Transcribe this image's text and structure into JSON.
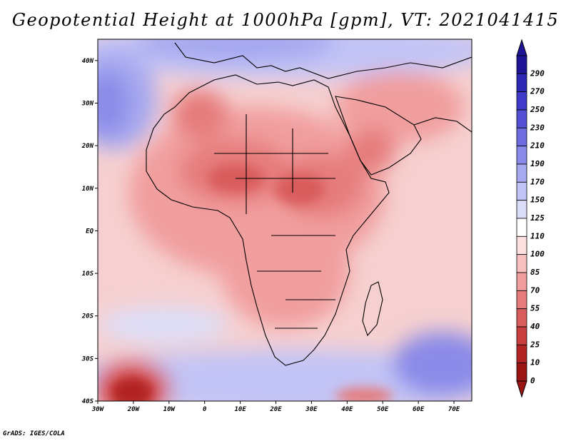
{
  "title": "Geopotential Height at 1000hPa [gpm], VT: 2021041415",
  "credit": "GrADS: IGES/COLA",
  "map": {
    "lat_ticks": [
      "40N",
      "30N",
      "20N",
      "10N",
      "EQ",
      "10S",
      "20S",
      "30S",
      "40S"
    ],
    "lon_ticks": [
      "30W",
      "20W",
      "10W",
      "0",
      "10E",
      "20E",
      "30E",
      "40E",
      "50E",
      "60E",
      "70E"
    ],
    "lon_range": [
      -30,
      75
    ],
    "lat_range": [
      -40,
      45
    ]
  },
  "colorbar": {
    "labels": [
      "290",
      "270",
      "250",
      "230",
      "210",
      "190",
      "170",
      "150",
      "125",
      "110",
      "100",
      "85",
      "70",
      "55",
      "40",
      "25",
      "10",
      "0"
    ],
    "colors": [
      "#1e1496",
      "#2e26b4",
      "#3f38c8",
      "#5550d6",
      "#6e6ce0",
      "#8a8ae8",
      "#a6a8f0",
      "#c2c4f6",
      "#dcdef9",
      "#ffffff",
      "#fde0e0",
      "#f9c0c0",
      "#f19e9e",
      "#e67c7c",
      "#d95c5c",
      "#c83d3d",
      "#b22424",
      "#9a1414"
    ]
  }
}
